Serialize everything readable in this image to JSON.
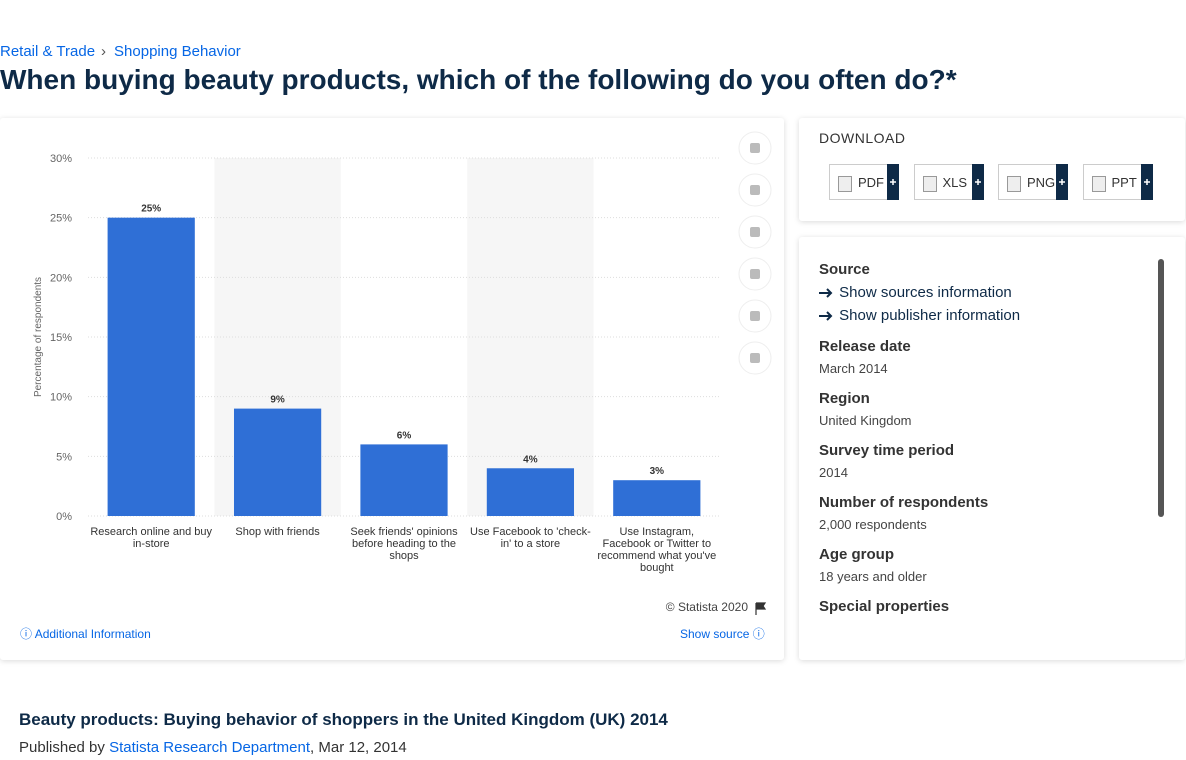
{
  "breadcrumb": [
    "Retail & Trade",
    "Shopping Behavior"
  ],
  "heading": "When buying beauty products, which of the following do you often do?*",
  "chart_data": {
    "type": "bar",
    "y_label": "Percentage of respondents",
    "categories": [
      "Research online and buy in-store",
      "Shop with friends",
      "Seek friends' opinions before heading to the shops",
      "Use Facebook to 'check-in' to a store",
      "Use Instagram, Facebook or Twitter to recommend what you've bought"
    ],
    "values": [
      25,
      9,
      6,
      4,
      3
    ],
    "value_labels": [
      "25%",
      "9%",
      "6%",
      "4%",
      "3%"
    ],
    "color": "#2f6fd6",
    "ylim": [
      0,
      30
    ],
    "yticks": [
      {
        "value": 0,
        "label": "0%"
      },
      {
        "value": 5,
        "label": "5%"
      },
      {
        "value": 10,
        "label": "10%"
      },
      {
        "value": 15,
        "label": "15%"
      },
      {
        "value": 20,
        "label": "20%"
      },
      {
        "value": 25,
        "label": "25%"
      },
      {
        "value": 30,
        "label": "30%"
      }
    ],
    "grid": true,
    "credit": "© Statista 2020"
  },
  "chart_footer": {
    "additional": "Additional Information",
    "show_source": "Show source"
  },
  "download": {
    "title": "DOWNLOAD",
    "formats": [
      "PDF",
      "XLS",
      "PNG",
      "PPT"
    ]
  },
  "source": {
    "label": "Source",
    "links": [
      "Show sources information",
      "Show publisher information"
    ]
  },
  "facts": [
    {
      "label": "Release date",
      "value": "March 2014"
    },
    {
      "label": "Region",
      "value": "United Kingdom"
    },
    {
      "label": "Survey time period",
      "value": "2014"
    },
    {
      "label": "Number of respondents",
      "value": "2,000 respondents"
    },
    {
      "label": "Age group",
      "value": "18 years and older"
    }
  ],
  "special_label": "Special properties",
  "footer": {
    "title": "Beauty products: Buying behavior of shoppers in the United Kingdom (UK) 2014",
    "published_by": "Published by",
    "author": "Statista Research Department",
    "date": ", Mar 12, 2014"
  }
}
